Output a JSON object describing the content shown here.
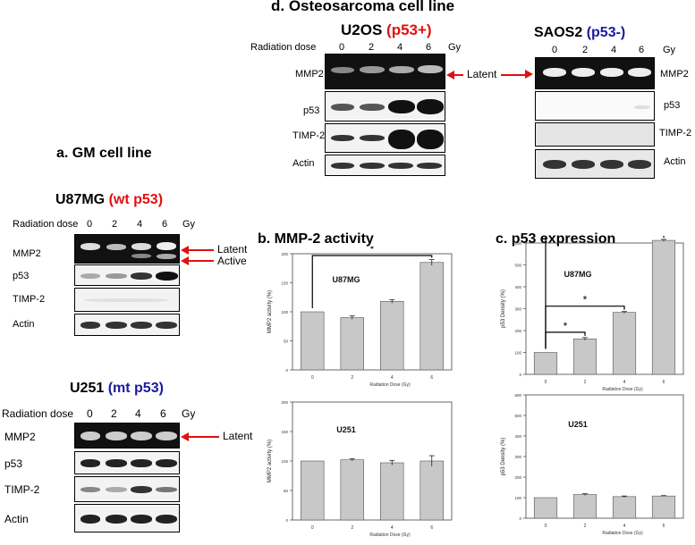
{
  "titles": {
    "a": "a. GM cell line",
    "b": "b. MMP-2 activity",
    "c": "c. p53 expression",
    "d": "d. Osteosarcoma cell line"
  },
  "cells": {
    "u87": {
      "name": "U87MG",
      "status": "(wt p53)",
      "status_color": "#e01010"
    },
    "u251": {
      "name": "U251",
      "status": "(mt p53)",
      "status_color": "#1a1aa0"
    },
    "u2os": {
      "name": "U2OS",
      "status": "(p53+)",
      "status_color": "#e01010"
    },
    "saos2": {
      "name": "SAOS2",
      "status": "(p53-)",
      "status_color": "#1a1aa0"
    }
  },
  "blot_labels": {
    "radiation_dose": "Radiation dose",
    "unit": "Gy",
    "doses": [
      "0",
      "2",
      "4",
      "6"
    ],
    "mmp2": "MMP2",
    "p53": "p53",
    "timp2": "TIMP-2",
    "actin": "Actin",
    "latent": "Latent",
    "active": "Active"
  },
  "chart_data": [
    {
      "type": "bar",
      "panel": "b",
      "subtitle": "U87MG",
      "categories": [
        "0",
        "2",
        "4",
        "6"
      ],
      "values": [
        100,
        90,
        118,
        185
      ],
      "errors": [
        0,
        3,
        3,
        5
      ],
      "xlabel": "Radiation Dose (Gy)",
      "ylabel": "MMP2 activity (%)",
      "ylim": [
        0,
        200
      ],
      "yticks": [
        "0",
        "50",
        "100",
        "150",
        "200"
      ],
      "significance": [
        {
          "from": "0",
          "to": "6",
          "label": "*"
        }
      ]
    },
    {
      "type": "bar",
      "panel": "b",
      "subtitle": "U251",
      "categories": [
        "0",
        "2",
        "4",
        "6"
      ],
      "values": [
        100,
        102,
        97,
        100
      ],
      "errors": [
        0,
        2,
        4,
        9
      ],
      "xlabel": "Radiation Dose (Gy)",
      "ylabel": "MMP2 activity (%)",
      "ylim": [
        0,
        200
      ],
      "yticks": [
        "0",
        "50",
        "100",
        "150",
        "200"
      ],
      "significance": []
    },
    {
      "type": "bar",
      "panel": "c",
      "subtitle": "U87MG",
      "categories": [
        "0",
        "2",
        "4",
        "6"
      ],
      "values": [
        100,
        162,
        283,
        612
      ],
      "errors": [
        0,
        6,
        4,
        5
      ],
      "xlabel": "Radiation Dose (Gy)",
      "ylabel": "p53 Density (%)",
      "ylim": [
        0,
        600
      ],
      "yticks": [
        "0",
        "100",
        "200",
        "300",
        "400",
        "500",
        "600"
      ],
      "significance": [
        {
          "from": "0",
          "to": "2",
          "label": "*"
        },
        {
          "from": "0",
          "to": "4",
          "label": "*"
        },
        {
          "from": "0",
          "to": "6",
          "label": "*"
        }
      ]
    },
    {
      "type": "bar",
      "panel": "c",
      "subtitle": "U251",
      "categories": [
        "0",
        "2",
        "4",
        "6"
      ],
      "values": [
        100,
        115,
        105,
        108
      ],
      "errors": [
        0,
        4,
        3,
        2
      ],
      "xlabel": "Radiation Dose (Gy)",
      "ylabel": "p53 Density (%)",
      "ylim": [
        0,
        600
      ],
      "yticks": [
        "0",
        "100",
        "200",
        "300",
        "400",
        "500",
        "600"
      ],
      "significance": []
    }
  ],
  "colors": {
    "bar": "#c8c8c8",
    "arrow": "#e01010",
    "wt": "#e01010",
    "mt": "#1a1aa0"
  }
}
